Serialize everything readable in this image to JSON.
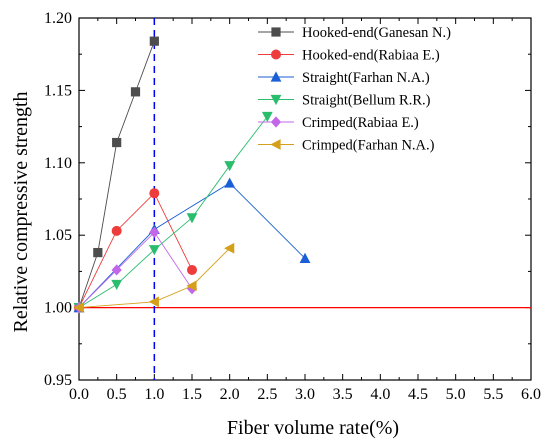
{
  "chart_data": {
    "type": "line",
    "title": "",
    "xlabel": "Fiber volume rate(%)",
    "ylabel": "Relative compressive strength",
    "xlim": [
      0.0,
      6.0
    ],
    "ylim": [
      0.95,
      1.2
    ],
    "x_ticks": [
      "0.0",
      "0.5",
      "1.0",
      "1.5",
      "2.0",
      "2.5",
      "3.0",
      "3.5",
      "4.0",
      "4.5",
      "5.0",
      "5.5",
      "6.0"
    ],
    "y_ticks": [
      "0.95",
      "1.00",
      "1.05",
      "1.10",
      "1.15",
      "1.20"
    ],
    "grid": false,
    "legend_position": "top-right",
    "reference_lines": [
      {
        "orientation": "horizontal",
        "value": 1.0,
        "color": "#ff0000",
        "style": "solid"
      },
      {
        "orientation": "vertical",
        "value": 1.0,
        "color": "#0000ff",
        "style": "dashed"
      }
    ],
    "series": [
      {
        "name": "Hooked-end(Ganesan N.)",
        "marker": "square",
        "color": "#4d4d4d",
        "points": [
          [
            0,
            1.0
          ],
          [
            0.25,
            1.038
          ],
          [
            0.5,
            1.114
          ],
          [
            0.75,
            1.149
          ],
          [
            1.0,
            1.184
          ]
        ]
      },
      {
        "name": "Hooked-end(Rabiaa E.)",
        "marker": "circle",
        "color": "#ee3b3b",
        "points": [
          [
            0,
            1.0
          ],
          [
            0.5,
            1.053
          ],
          [
            1.0,
            1.079
          ],
          [
            1.5,
            1.026
          ]
        ]
      },
      {
        "name": "Straight(Farhan N.A.)",
        "marker": "triangle-up",
        "color": "#1a5fd6",
        "points": [
          [
            0,
            1.0
          ],
          [
            1.0,
            1.054
          ],
          [
            2.0,
            1.086
          ],
          [
            3.0,
            1.034
          ]
        ]
      },
      {
        "name": "Straight(Bellum R.R.)",
        "marker": "triangle-down",
        "color": "#2bbd6e",
        "points": [
          [
            0,
            1.0
          ],
          [
            0.5,
            1.016
          ],
          [
            1.0,
            1.04
          ],
          [
            1.5,
            1.062
          ],
          [
            2.0,
            1.098
          ],
          [
            2.5,
            1.132
          ]
        ]
      },
      {
        "name": "Crimped(Rabiaa E.)",
        "marker": "diamond",
        "color": "#c267e8",
        "points": [
          [
            0,
            1.0
          ],
          [
            0.5,
            1.026
          ],
          [
            1.0,
            1.052
          ],
          [
            1.5,
            1.013
          ]
        ]
      },
      {
        "name": "Crimped(Farhan N.A.)",
        "marker": "triangle-left",
        "color": "#d4a01a",
        "points": [
          [
            0,
            1.0
          ],
          [
            1.0,
            1.004
          ],
          [
            1.5,
            1.015
          ],
          [
            2.0,
            1.041
          ]
        ]
      }
    ]
  }
}
